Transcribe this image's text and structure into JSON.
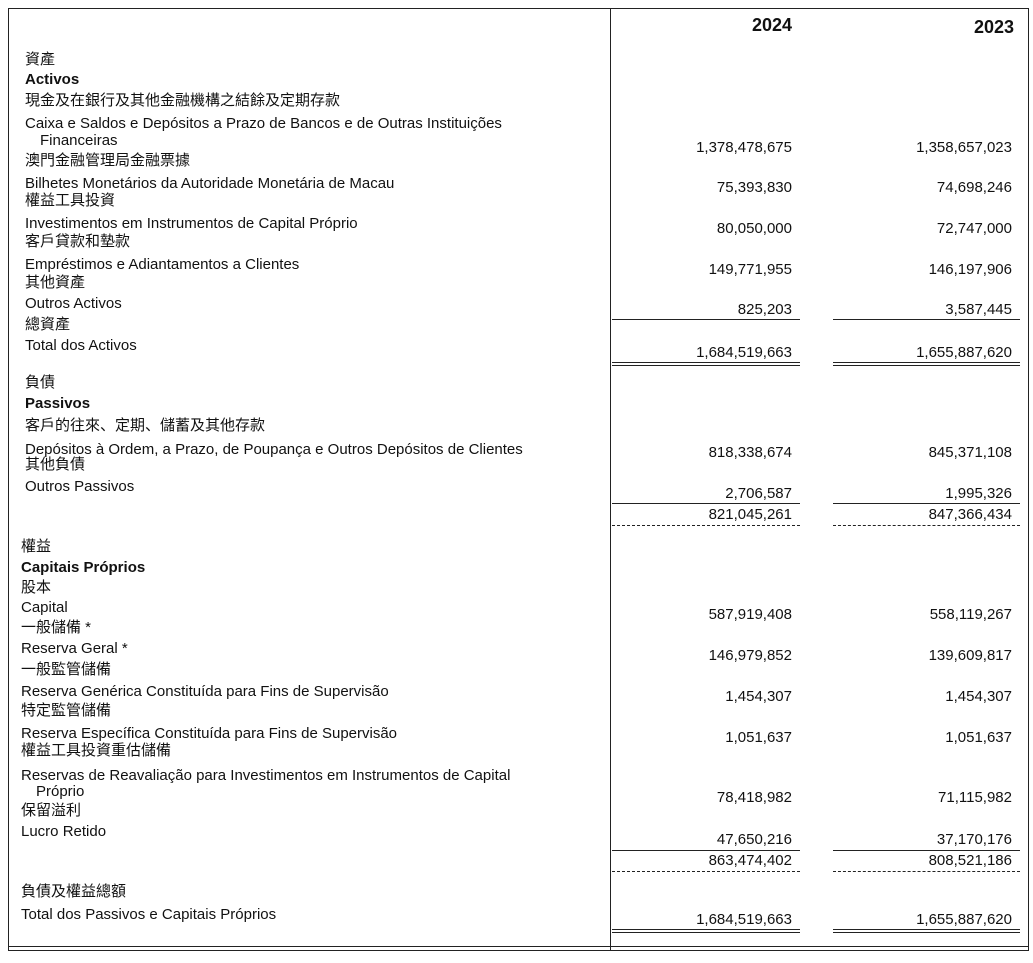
{
  "header": {
    "years": [
      "2024",
      "2023"
    ]
  },
  "assets": {
    "title_zh": "資產",
    "title_pt": "Activos",
    "items": [
      {
        "zh": "現金及在銀行及其他金融機構之結餘及定期存款",
        "pt": [
          "Caixa e Saldos e Depósitos a Prazo de Bancos e de Outras Instituições",
          "Financeiras"
        ],
        "values": [
          "1,378,478,675",
          "1,358,657,023"
        ]
      },
      {
        "zh": "澳門金融管理局金融票據",
        "pt": [
          "Bilhetes Monetários da Autoridade Monetária de Macau"
        ],
        "values": [
          "75,393,830",
          "74,698,246"
        ]
      },
      {
        "zh": "權益工具投資",
        "pt": [
          "Investimentos em Instrumentos de Capital Próprio"
        ],
        "values": [
          "80,050,000",
          "72,747,000"
        ]
      },
      {
        "zh": "客戶貸款和墊款",
        "pt": [
          "Empréstimos e Adiantamentos a Clientes"
        ],
        "values": [
          "149,771,955",
          "146,197,906"
        ]
      },
      {
        "zh": "其他資產",
        "pt": [
          "Outros Activos"
        ],
        "values": [
          "825,203",
          "3,587,445"
        ]
      }
    ],
    "total": {
      "zh": "總資產",
      "pt": [
        "Total dos Activos"
      ],
      "values": [
        "1,684,519,663",
        "1,655,887,620"
      ]
    }
  },
  "liabilities": {
    "title_zh": "負債",
    "title_pt": "Passivos",
    "items": [
      {
        "zh": "客戶的往來、定期、儲蓄及其他存款",
        "pt": [
          "Depósitos à Ordem, a Prazo, de Poupança e Outros Depósitos de Clientes"
        ],
        "values": [
          "818,338,674",
          "845,371,108"
        ]
      },
      {
        "zh": "其他負債",
        "pt": [
          "Outros Passivos"
        ],
        "values": [
          "2,706,587",
          "1,995,326"
        ]
      }
    ],
    "total": {
      "values": [
        "821,045,261",
        "847,366,434"
      ]
    }
  },
  "equity": {
    "title_zh": "權益",
    "title_pt": "Capitais Próprios",
    "items": [
      {
        "zh": "股本",
        "pt": [
          "Capital"
        ],
        "values": [
          "587,919,408",
          "558,119,267"
        ]
      },
      {
        "zh": "一般儲備 *",
        "pt": [
          "Reserva Geral *"
        ],
        "values": [
          "146,979,852",
          "139,609,817"
        ]
      },
      {
        "zh": "一般監管儲備",
        "pt": [
          "Reserva Genérica Constituída para Fins de Supervisão"
        ],
        "values": [
          "1,454,307",
          "1,454,307"
        ]
      },
      {
        "zh": "特定監管儲備",
        "pt": [
          "Reserva Específica Constituída para Fins de Supervisão"
        ],
        "values": [
          "1,051,637",
          "1,051,637"
        ]
      },
      {
        "zh": "權益工具投資重估儲備",
        "pt": [
          "Reservas de Reavaliação para Investimentos em Instrumentos de Capital",
          "Próprio"
        ],
        "values": [
          "78,418,982",
          "71,115,982"
        ]
      },
      {
        "zh": "保留溢利",
        "pt": [
          "Lucro Retido"
        ],
        "values": [
          "47,650,216",
          "37,170,176"
        ]
      }
    ],
    "total": {
      "values": [
        "863,474,402",
        "808,521,186"
      ]
    }
  },
  "grand_total": {
    "zh": "負債及權益總額",
    "pt": [
      "Total dos Passivos e Capitais Próprios"
    ],
    "values": [
      "1,684,519,663",
      "1,655,887,620"
    ]
  }
}
